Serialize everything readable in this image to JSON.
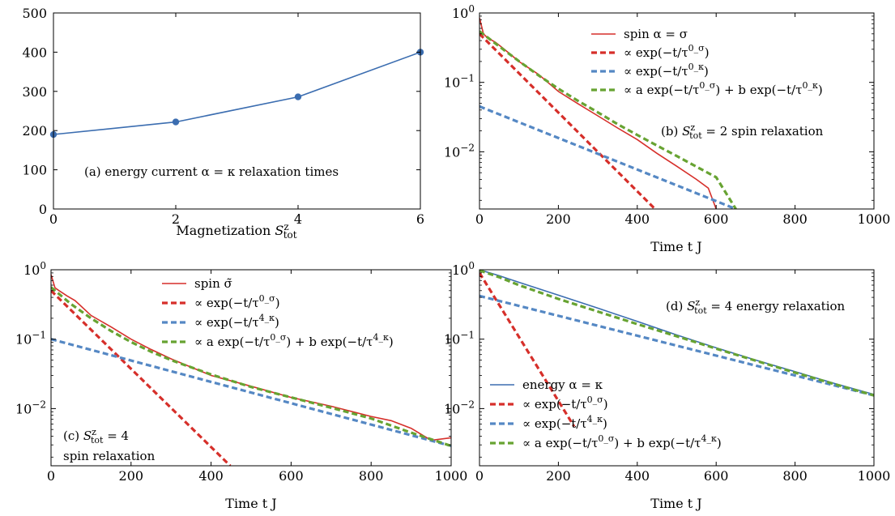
{
  "colors": {
    "red": "#d62f2a",
    "blue": "#3b6db0",
    "sky": "#5588c4",
    "green": "#67a332"
  },
  "chart_data": [
    {
      "id": "a",
      "type": "line",
      "annotation": "(a) energy current α = κ relaxation times",
      "xlabel": "Magnetization S^z_tot",
      "ylabel": "",
      "xlim": [
        0,
        6
      ],
      "ylim": [
        0,
        500
      ],
      "xticks": [
        0,
        2,
        4,
        6
      ],
      "yticks": [
        0,
        100,
        200,
        300,
        400,
        500
      ],
      "grid": false,
      "series": [
        {
          "x": [
            0,
            2,
            4,
            6
          ],
          "y": [
            190,
            222,
            286,
            400
          ],
          "color": "blue",
          "markers": true
        }
      ]
    },
    {
      "id": "b",
      "type": "line",
      "annotation": "(b) S^z_tot = 2 spin relaxation",
      "xlabel": "Time t J",
      "xlim": [
        0,
        1000
      ],
      "ylim": [
        0.0015,
        1
      ],
      "yscale": "log",
      "xticks": [
        0,
        200,
        400,
        600,
        800,
        1000
      ],
      "yticks": [
        "10^0",
        "10^-1",
        "10^-2"
      ],
      "grid": false,
      "legend_position": "top-right",
      "series": [
        {
          "name": "spin α = σ",
          "color": "red",
          "style": "solid",
          "x": [
            0,
            10,
            20,
            40,
            60,
            100,
            150,
            200,
            250,
            300,
            350,
            400,
            450,
            500,
            550,
            580,
            600
          ],
          "y": [
            0.85,
            0.5,
            0.44,
            0.38,
            0.31,
            0.2,
            0.13,
            0.074,
            0.049,
            0.033,
            0.022,
            0.015,
            0.0095,
            0.0062,
            0.004,
            0.003,
            0.0015
          ]
        },
        {
          "name": "∝ exp(−t/τ^0_σ)",
          "color": "red",
          "style": "dashed",
          "x": [
            0,
            445
          ],
          "y": [
            0.5,
            0.0015
          ]
        },
        {
          "name": "∝ exp(−t/τ^0_κ)",
          "color": "sky",
          "style": "dashed",
          "x": [
            0,
            650
          ],
          "y": [
            0.045,
            0.0015
          ]
        },
        {
          "name": "∝ a exp(−t/τ^0_σ) + b exp(−t/τ^0_κ)",
          "color": "green",
          "style": "dashed",
          "x": [
            0,
            50,
            100,
            150,
            200,
            250,
            300,
            350,
            400,
            450,
            500,
            550,
            600,
            650
          ],
          "y": [
            0.545,
            0.33,
            0.202,
            0.126,
            0.081,
            0.054,
            0.037,
            0.025,
            0.0175,
            0.0123,
            0.0087,
            0.0061,
            0.0043,
            0.0015
          ]
        }
      ]
    },
    {
      "id": "c",
      "type": "line",
      "annotation": [
        "(c) S^z_tot = 4",
        "spin relaxation"
      ],
      "xlabel": "Time t J",
      "xlim": [
        0,
        1000
      ],
      "ylim": [
        0.0015,
        1
      ],
      "yscale": "log",
      "xticks": [
        0,
        200,
        400,
        600,
        800,
        1000
      ],
      "yticks": [
        "10^0",
        "10^-1",
        "10^-2"
      ],
      "grid": false,
      "legend_position": "top-right",
      "series": [
        {
          "name": "spin σ̃",
          "color": "red",
          "style": "solid",
          "x": [
            0,
            10,
            20,
            40,
            60,
            100,
            150,
            200,
            250,
            300,
            400,
            500,
            600,
            700,
            800,
            850,
            900,
            950,
            1000
          ],
          "y": [
            0.85,
            0.55,
            0.5,
            0.42,
            0.36,
            0.22,
            0.15,
            0.1,
            0.071,
            0.052,
            0.03,
            0.021,
            0.0145,
            0.0108,
            0.0077,
            0.0067,
            0.0052,
            0.0035,
            0.0038
          ]
        },
        {
          "name": "∝ exp(−t/τ^0_σ)",
          "color": "red",
          "style": "dashed",
          "x": [
            0,
            448
          ],
          "y": [
            0.5,
            0.0015
          ]
        },
        {
          "name": "∝ exp(−t/τ^4_κ)",
          "color": "sky",
          "style": "dashed",
          "x": [
            0,
            1000
          ],
          "y": [
            0.1,
            0.0029
          ]
        },
        {
          "name": "∝ a exp(−t/τ^0_σ) + b exp(−t/τ^4_κ)",
          "color": "green",
          "style": "dashed",
          "x": [
            0,
            50,
            100,
            150,
            200,
            250,
            300,
            400,
            500,
            600,
            700,
            800,
            900,
            1000
          ],
          "y": [
            0.56,
            0.32,
            0.2,
            0.131,
            0.091,
            0.066,
            0.05,
            0.031,
            0.0205,
            0.0145,
            0.0103,
            0.0072,
            0.0045,
            0.0029
          ]
        }
      ]
    },
    {
      "id": "d",
      "type": "line",
      "annotation": "(d) S^z_tot = 4 energy relaxation",
      "xlabel": "Time t J",
      "xlim": [
        0,
        1000
      ],
      "ylim": [
        0.0015,
        1
      ],
      "yscale": "log",
      "xticks": [
        0,
        200,
        400,
        600,
        800,
        1000
      ],
      "yticks": [
        "10^0",
        "10^-1",
        "10^-2"
      ],
      "grid": false,
      "legend_position": "bottom-left",
      "series": [
        {
          "name": "energy α = κ",
          "color": "blue",
          "style": "solid",
          "x": [
            0,
            50,
            100,
            200,
            300,
            400,
            500,
            600,
            700,
            800,
            900,
            1000
          ],
          "y": [
            1.0,
            0.82,
            0.66,
            0.43,
            0.28,
            0.18,
            0.115,
            0.075,
            0.05,
            0.034,
            0.023,
            0.016
          ]
        },
        {
          "name": "∝ exp(−t/τ^0_σ)",
          "color": "red",
          "style": "dashed",
          "x": [
            0,
            240
          ],
          "y": [
            0.9,
            0.0055
          ]
        },
        {
          "name": "∝ exp(−t/τ^4_κ)",
          "color": "sky",
          "style": "dashed",
          "x": [
            0,
            1000
          ],
          "y": [
            0.42,
            0.0155
          ]
        },
        {
          "name": "∝ a exp(−t/τ^0_σ) + b exp(−t/τ^4_κ)",
          "color": "green",
          "style": "dashed",
          "x": [
            0,
            50,
            100,
            200,
            300,
            400,
            500,
            600,
            700,
            800,
            900,
            1000
          ],
          "y": [
            0.98,
            0.78,
            0.6,
            0.38,
            0.25,
            0.165,
            0.11,
            0.073,
            0.049,
            0.033,
            0.0225,
            0.0155
          ]
        }
      ]
    }
  ]
}
